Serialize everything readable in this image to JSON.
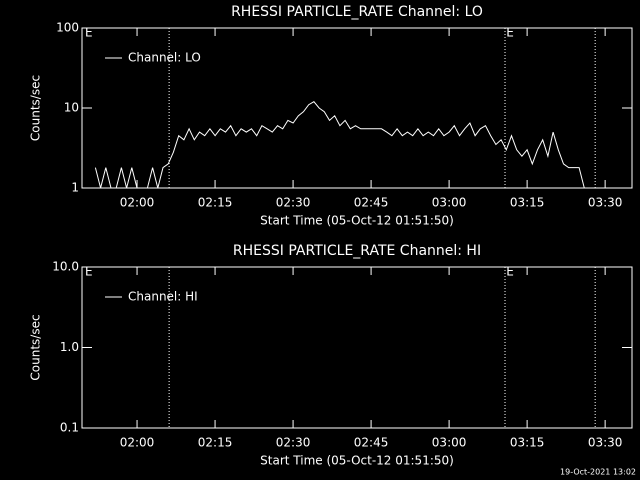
{
  "chart_data": [
    {
      "type": "line",
      "title": "RHESSI PARTICLE_RATE Channel: LO",
      "ylabel": "Counts/sec",
      "xlabel": "Start Time (05-Oct-12 01:51:50)",
      "log_y": true,
      "ylim": [
        1,
        100
      ],
      "yticks": [
        1,
        10,
        100
      ],
      "xlim": [
        "01:49:25",
        "03:35:10"
      ],
      "xticks": [
        "02:00",
        "02:15",
        "02:30",
        "02:45",
        "03:00",
        "03:15",
        "03:30"
      ],
      "vlines": [
        "02:06:10",
        "03:10:45",
        "03:28:05"
      ],
      "annotations": [
        {
          "text": "E",
          "x": "01:50:00"
        },
        {
          "text": "E",
          "x": "03:11:00"
        }
      ],
      "series": [
        {
          "name": "Channel: LO",
          "color": "#ffffff",
          "x": [
            "01:52",
            "01:53",
            "01:54",
            "01:55",
            "01:56",
            "01:57",
            "01:58",
            "01:59",
            "02:00",
            "02:01",
            "02:02",
            "02:03",
            "02:04",
            "02:05",
            "02:06",
            "02:07",
            "02:08",
            "02:09",
            "02:10",
            "02:11",
            "02:12",
            "02:13",
            "02:14",
            "02:15",
            "02:16",
            "02:17",
            "02:18",
            "02:19",
            "02:20",
            "02:21",
            "02:22",
            "02:23",
            "02:24",
            "02:25",
            "02:26",
            "02:27",
            "02:28",
            "02:29",
            "02:30",
            "02:31",
            "02:32",
            "02:33",
            "02:34",
            "02:35",
            "02:36",
            "02:37",
            "02:38",
            "02:39",
            "02:40",
            "02:41",
            "02:42",
            "02:43",
            "02:44",
            "02:45",
            "02:46",
            "02:47",
            "02:48",
            "02:49",
            "02:50",
            "02:51",
            "02:52",
            "02:53",
            "02:54",
            "02:55",
            "02:56",
            "02:57",
            "02:58",
            "02:59",
            "03:00",
            "03:01",
            "03:02",
            "03:03",
            "03:04",
            "03:05",
            "03:06",
            "03:07",
            "03:08",
            "03:09",
            "03:10",
            "03:11",
            "03:12",
            "03:13",
            "03:14",
            "03:15",
            "03:16",
            "03:17",
            "03:18",
            "03:19",
            "03:20",
            "03:21",
            "03:22",
            "03:23",
            "03:24",
            "03:25",
            "03:26"
          ],
          "values": [
            1.8,
            1,
            1.8,
            1,
            1,
            1.8,
            1,
            1.8,
            1,
            1,
            1,
            1.8,
            1,
            1.8,
            2,
            2.8,
            4.5,
            4,
            5.5,
            4,
            5,
            4.5,
            5.5,
            4.5,
            5.5,
            5,
            6,
            4.5,
            5.5,
            5,
            5.5,
            4.5,
            6,
            5.5,
            5,
            6,
            5.5,
            7,
            6.5,
            8,
            9,
            11,
            12,
            10,
            9,
            7,
            8,
            6,
            7,
            5.5,
            6,
            5.5,
            5.5,
            5.5,
            5.5,
            5.5,
            5,
            4.5,
            5.5,
            4.5,
            5,
            4.5,
            5.5,
            4.5,
            5,
            4.5,
            5.5,
            4.5,
            5,
            6,
            4.5,
            5.5,
            6.5,
            4.5,
            5.5,
            6,
            4.5,
            3.5,
            4,
            3,
            4.5,
            3,
            2.5,
            3,
            2,
            3,
            4,
            2.5,
            5,
            3,
            2,
            1.8,
            1.8,
            1.8,
            1
          ]
        }
      ]
    },
    {
      "type": "line",
      "title": "RHESSI PARTICLE_RATE Channel: HI",
      "ylabel": "Counts/sec",
      "xlabel": "Start Time (05-Oct-12 01:51:50)",
      "log_y": true,
      "ylim": [
        0.1,
        10
      ],
      "yticks": [
        0.1,
        {
          "value": 1,
          "label": "1.0"
        },
        {
          "value": 10,
          "label": "10.0"
        }
      ],
      "xlim": [
        "01:49:25",
        "03:35:10"
      ],
      "xticks": [
        "02:00",
        "02:15",
        "02:30",
        "02:45",
        "03:00",
        "03:15",
        "03:30"
      ],
      "vlines": [
        "02:06:10",
        "03:10:45",
        "03:28:05"
      ],
      "annotations": [
        {
          "text": "E",
          "x": "01:50:00"
        },
        {
          "text": "E",
          "x": "03:11:00"
        }
      ],
      "series": [
        {
          "name": "Channel: HI",
          "color": "#ffffff",
          "x": [],
          "values": []
        }
      ]
    }
  ],
  "footer": "19-Oct-2021 13:02"
}
